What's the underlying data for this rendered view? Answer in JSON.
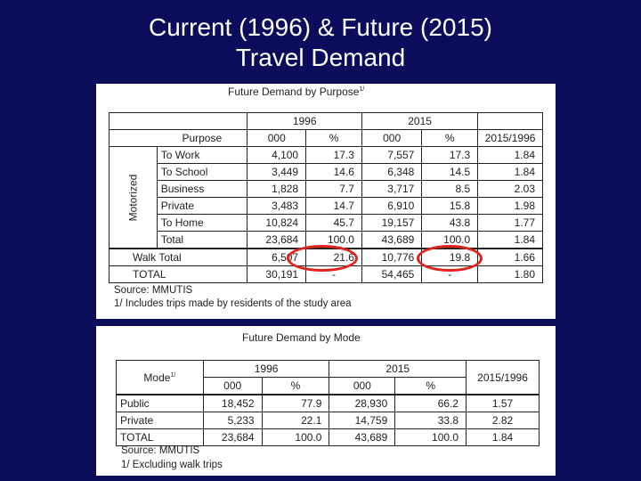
{
  "slide": {
    "title_line1": "Current (1996) & Future (2015)",
    "title_line2": "Travel Demand"
  },
  "purpose_table": {
    "caption": "Future Demand by Purpose",
    "caption_note_mark": "1/",
    "year_1996": "1996",
    "year_2015": "2015",
    "col_purpose": "Purpose",
    "col_000": "000",
    "col_pct": "%",
    "col_ratio": "2015/1996",
    "group_label": "Motorized",
    "rows": [
      {
        "label": "To Work",
        "v1996": "4,100",
        "p1996": "17.3",
        "v2015": "7,557",
        "p2015": "17.3",
        "ratio": "1.84"
      },
      {
        "label": "To School",
        "v1996": "3,449",
        "p1996": "14.6",
        "v2015": "6,348",
        "p2015": "14.5",
        "ratio": "1.84"
      },
      {
        "label": "Business",
        "v1996": "1,828",
        "p1996": "7.7",
        "v2015": "3,717",
        "p2015": "8.5",
        "ratio": "2.03"
      },
      {
        "label": "Private",
        "v1996": "3,483",
        "p1996": "14.7",
        "v2015": "6,910",
        "p2015": "15.8",
        "ratio": "1.98"
      },
      {
        "label": "To Home",
        "v1996": "10,824",
        "p1996": "45.7",
        "v2015": "19,157",
        "p2015": "43.8",
        "ratio": "1.77"
      },
      {
        "label": "Total",
        "v1996": "23,684",
        "p1996": "100.0",
        "v2015": "43,689",
        "p2015": "100.0",
        "ratio": "1.84"
      }
    ],
    "walk": {
      "label": "Walk Total",
      "v1996": "6,507",
      "p1996": "21.6",
      "v2015": "10,776",
      "p2015": "19.8",
      "ratio": "1.66"
    },
    "total": {
      "label": "TOTAL",
      "v1996": "30,191",
      "p1996": "-",
      "v2015": "54,465",
      "p2015": "-",
      "ratio": "1.80"
    },
    "source": "Source:  MMUTIS",
    "footnote": "1/ Includes trips made by residents of the study area"
  },
  "mode_table": {
    "caption": "Future Demand by Mode",
    "col_mode": "Mode",
    "col_mode_note_mark": "1/",
    "year_1996": "1996",
    "year_2015": "2015",
    "col_000": "000",
    "col_pct": "%",
    "col_ratio": "2015/1996",
    "rows": [
      {
        "label": "Public",
        "v1996": "18,452",
        "p1996": "77.9",
        "v2015": "28,930",
        "p2015": "66.2",
        "ratio": "1.57"
      },
      {
        "label": "Private",
        "v1996": "5,233",
        "p1996": "22.1",
        "v2015": "14,759",
        "p2015": "33.8",
        "ratio": "2.82"
      },
      {
        "label": "TOTAL",
        "v1996": "23,684",
        "p1996": "100.0",
        "v2015": "43,689",
        "p2015": "100.0",
        "ratio": "1.84"
      }
    ],
    "source": "Source: MMUTIS",
    "footnote": "1/ Excluding walk trips"
  },
  "highlight_color": "#e0241c",
  "background_color": "#0c0c5c"
}
